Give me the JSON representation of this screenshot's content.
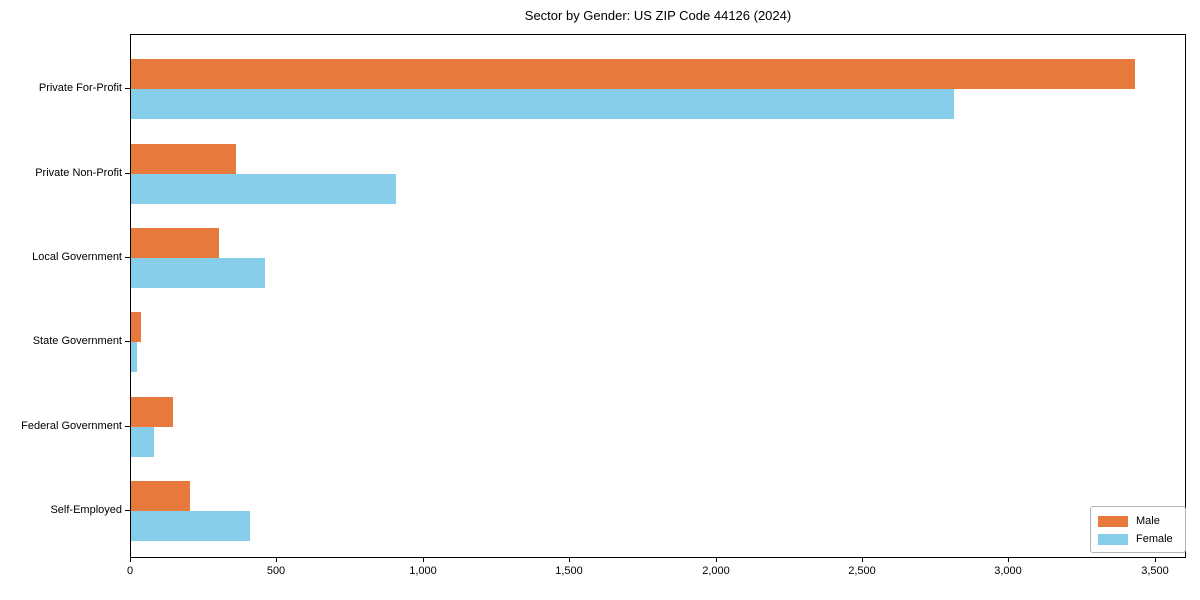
{
  "title": "Sector by Gender: US ZIP Code 44126 (2024)",
  "chart_data": {
    "type": "bar",
    "orientation": "horizontal",
    "title": "Sector by Gender: US ZIP Code 44126 (2024)",
    "xlabel": "",
    "ylabel": "",
    "categories": [
      "Private For-Profit",
      "Private Non-Profit",
      "Local Government",
      "State Government",
      "Federal Government",
      "Self-Employed"
    ],
    "series": [
      {
        "name": "Male",
        "color": "#e8793d",
        "values": [
          3430,
          357,
          302,
          33,
          143,
          200
        ]
      },
      {
        "name": "Female",
        "color": "#87ceeb",
        "values": [
          2810,
          904,
          456,
          20,
          80,
          407
        ]
      }
    ],
    "xlim": [
      0,
      3600
    ],
    "x_ticks": [
      0,
      500,
      1000,
      1500,
      2000,
      2500,
      3000,
      3500
    ],
    "x_tick_labels": [
      "0",
      "500",
      "1,000",
      "1,500",
      "2,000",
      "2,500",
      "3,000",
      "3,500"
    ],
    "grid": false,
    "legend_position": "lower right"
  },
  "legend": {
    "items": [
      {
        "label": "Male",
        "color": "#e8793d"
      },
      {
        "label": "Female",
        "color": "#87ceeb"
      }
    ]
  }
}
